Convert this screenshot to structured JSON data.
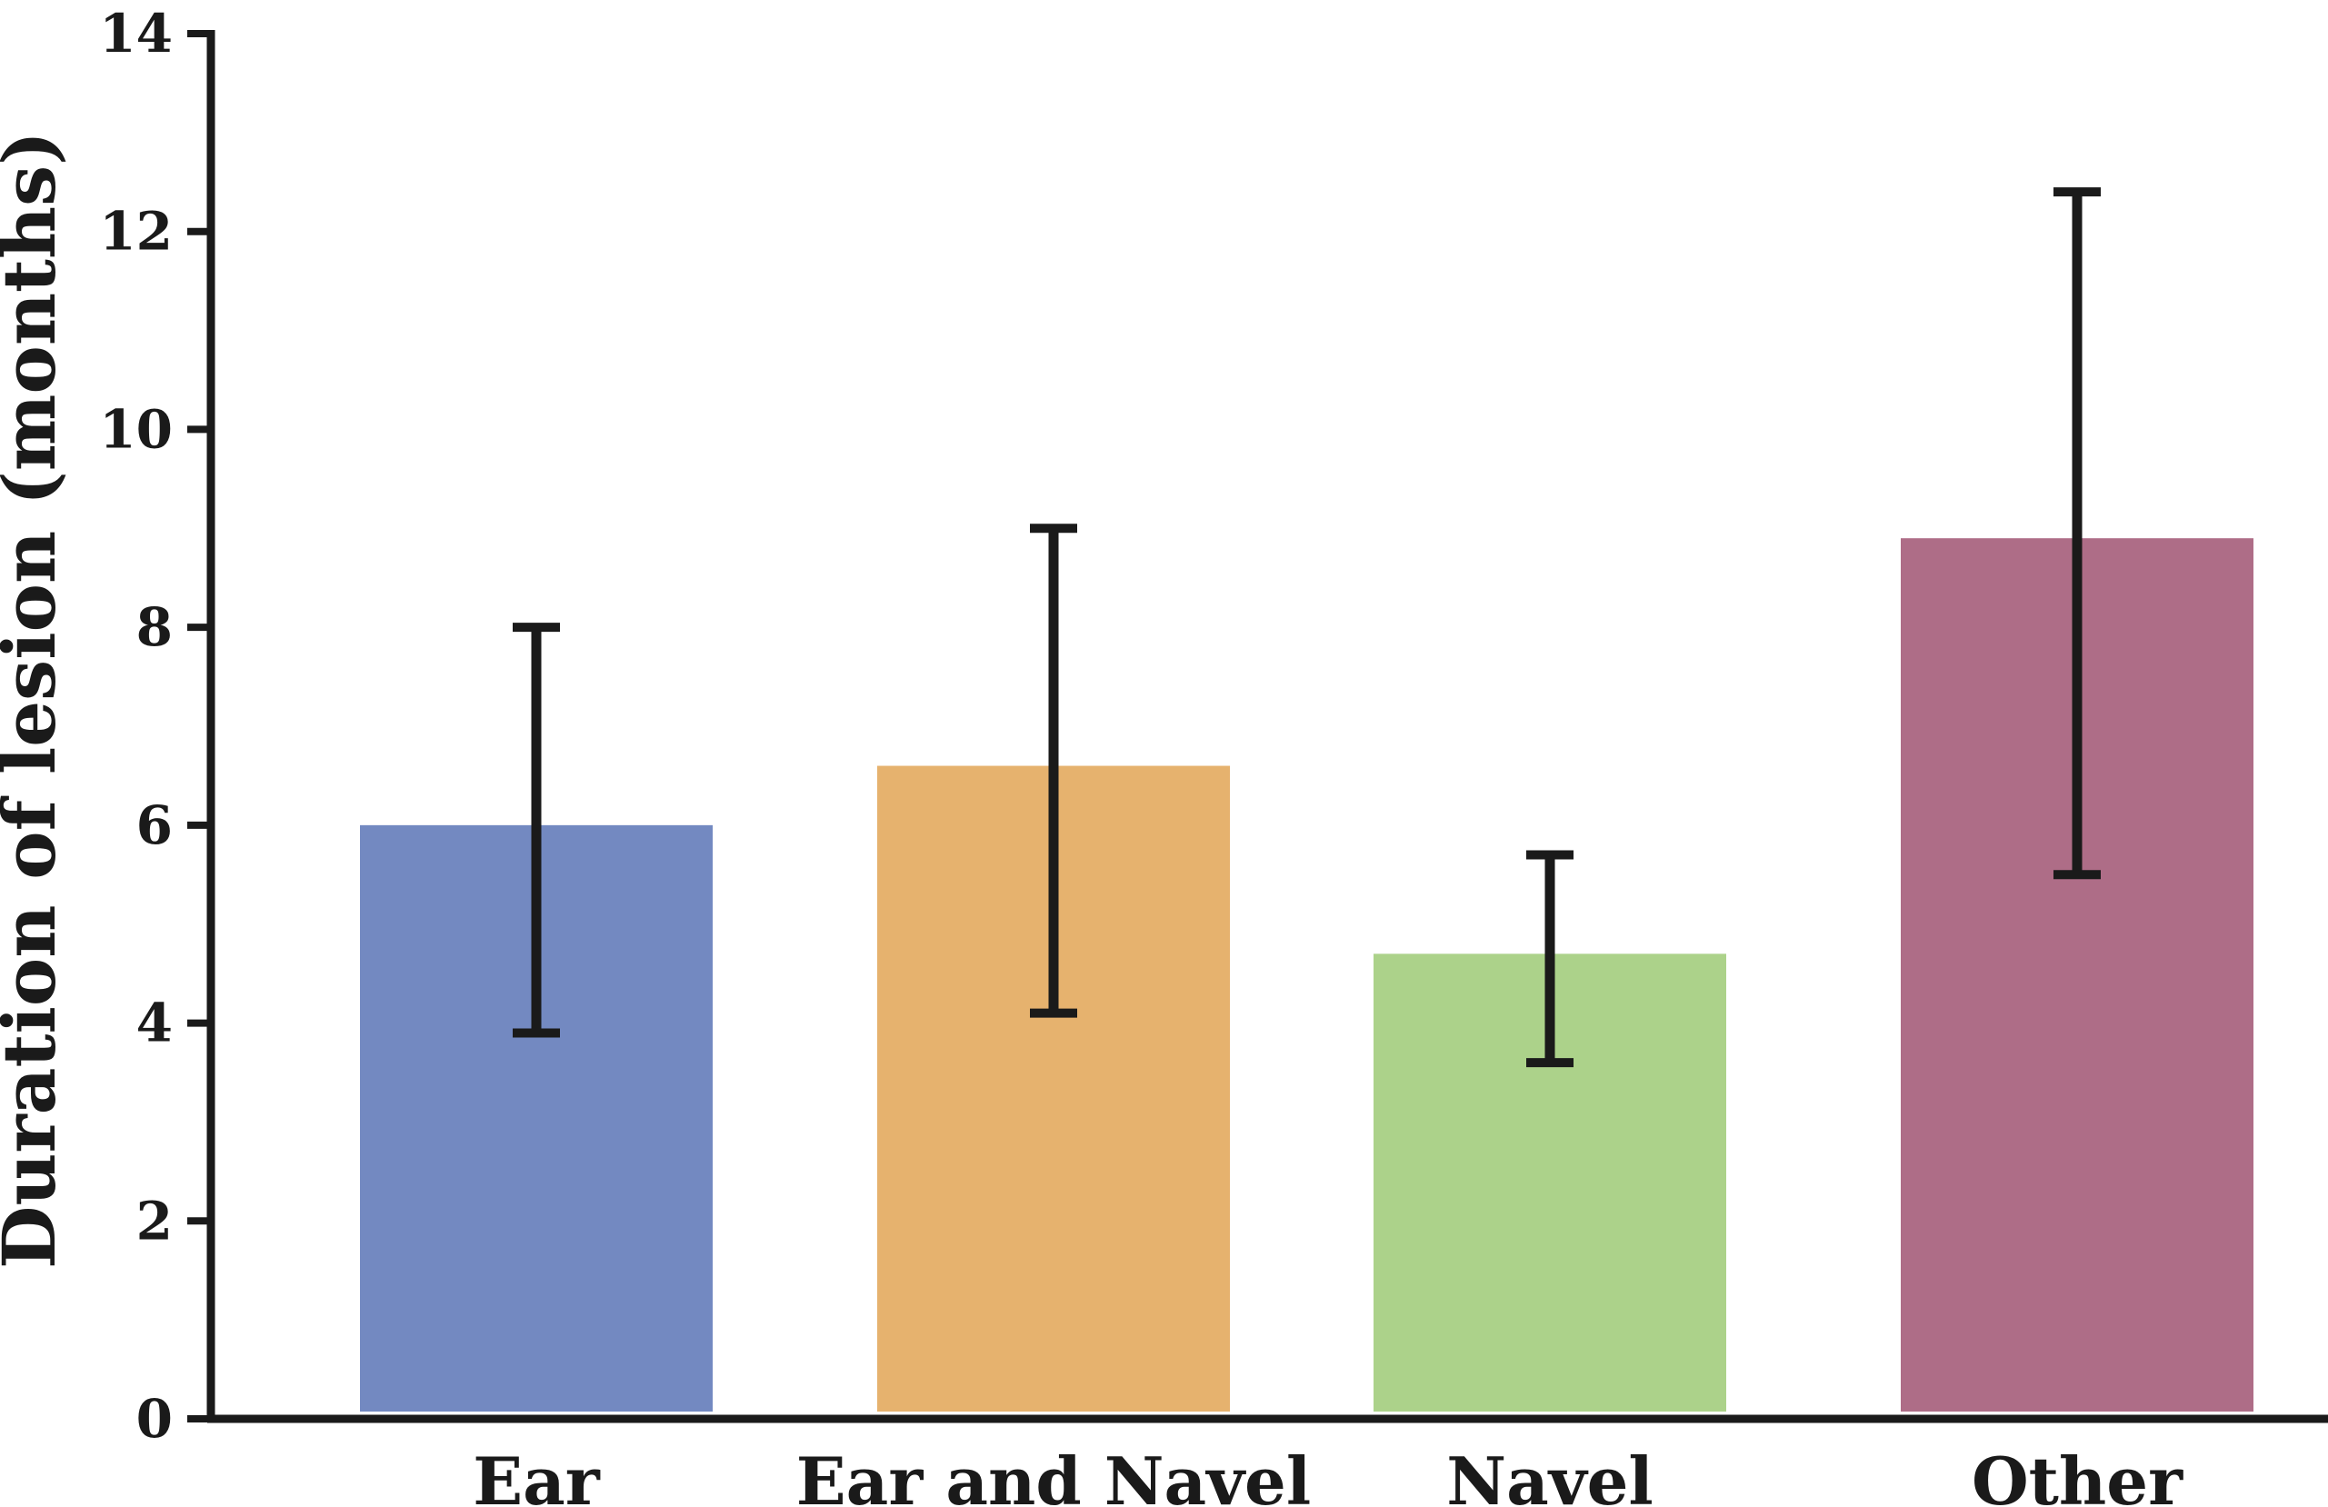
{
  "chart_data": {
    "type": "bar",
    "title": "",
    "xlabel": "",
    "ylabel": "Duration of lesion (months)",
    "ylim": [
      0,
      14
    ],
    "yticks": [
      0,
      2,
      4,
      6,
      8,
      10,
      12,
      14
    ],
    "grid": false,
    "legend": "none",
    "categories": [
      "Ear",
      "Ear and Navel",
      "Navel",
      "Other"
    ],
    "values": [
      6.0,
      6.6,
      4.7,
      8.9
    ],
    "error_bars": [
      {
        "low": 3.9,
        "high": 8.0
      },
      {
        "low": 4.1,
        "high": 9.0
      },
      {
        "low": 3.6,
        "high": 5.7
      },
      {
        "low": 5.5,
        "high": 12.4
      }
    ],
    "colors": [
      "#7389c1",
      "#e6b26e",
      "#acd28a",
      "#ae6d87"
    ],
    "axis_color": "#1a1a1a"
  }
}
